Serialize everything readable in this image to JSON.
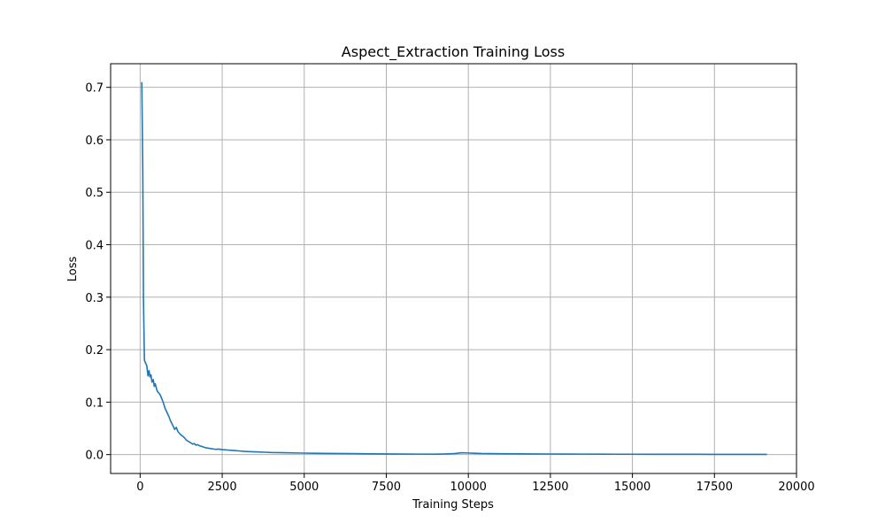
{
  "chart_data": {
    "type": "line",
    "title": "Aspect_Extraction Training Loss",
    "xlabel": "Training Steps",
    "ylabel": "Loss",
    "xlim": [
      -900,
      20000
    ],
    "ylim": [
      -0.036,
      0.745
    ],
    "xticks": [
      0,
      2500,
      5000,
      7500,
      10000,
      12500,
      15000,
      17500,
      20000
    ],
    "yticks": [
      0.0,
      0.1,
      0.2,
      0.3,
      0.4,
      0.5,
      0.6,
      0.7
    ],
    "xtick_labels": [
      "0",
      "2500",
      "5000",
      "7500",
      "10000",
      "12500",
      "15000",
      "17500",
      "20000"
    ],
    "ytick_labels": [
      "0.0",
      "0.1",
      "0.2",
      "0.3",
      "0.4",
      "0.5",
      "0.6",
      "0.7"
    ],
    "grid": true,
    "line_color": "#1f77b4",
    "series": [
      {
        "x": [
          50,
          80,
          100,
          130,
          160,
          200,
          240,
          270,
          300,
          330,
          360,
          400,
          430,
          460,
          500,
          530,
          560,
          600,
          650,
          700,
          760,
          820,
          880,
          920,
          960,
          1000,
          1050,
          1100,
          1150,
          1200,
          1250,
          1300,
          1350,
          1400,
          1450,
          1500,
          1550,
          1600,
          1650,
          1700,
          1750,
          1800,
          1850,
          1900,
          1950,
          2000,
          2100,
          2200,
          2300,
          2400,
          2500,
          2600,
          2700,
          2800,
          2900,
          3000,
          3200,
          3400,
          3600,
          3800,
          4000,
          4200,
          4400,
          4600,
          4800,
          5000,
          5300,
          5600,
          6000,
          6500,
          7000,
          7500,
          8000,
          8500,
          9000,
          9300,
          9600,
          9800,
          10000,
          10200,
          10400,
          10700,
          11000,
          11500,
          12000,
          12500,
          13000,
          13500,
          14000,
          14500,
          15000,
          15500,
          16000,
          16500,
          17000,
          17500,
          18000,
          18500,
          19000,
          19100
        ],
        "y": [
          0.71,
          0.54,
          0.3,
          0.18,
          0.175,
          0.17,
          0.15,
          0.16,
          0.148,
          0.152,
          0.138,
          0.143,
          0.13,
          0.135,
          0.125,
          0.12,
          0.118,
          0.115,
          0.108,
          0.1,
          0.088,
          0.08,
          0.072,
          0.065,
          0.06,
          0.055,
          0.048,
          0.052,
          0.044,
          0.04,
          0.037,
          0.035,
          0.032,
          0.028,
          0.026,
          0.024,
          0.022,
          0.02,
          0.021,
          0.018,
          0.019,
          0.017,
          0.016,
          0.015,
          0.014,
          0.013,
          0.012,
          0.011,
          0.01,
          0.0105,
          0.0095,
          0.009,
          0.0085,
          0.008,
          0.0075,
          0.007,
          0.006,
          0.0055,
          0.005,
          0.0045,
          0.004,
          0.0038,
          0.0035,
          0.0033,
          0.003,
          0.0028,
          0.0025,
          0.0022,
          0.002,
          0.0018,
          0.0015,
          0.0012,
          0.001,
          0.0009,
          0.0008,
          0.0012,
          0.002,
          0.0035,
          0.003,
          0.0025,
          0.002,
          0.0018,
          0.0016,
          0.0014,
          0.0012,
          0.0011,
          0.001,
          0.0009,
          0.0008,
          0.0007,
          0.0007,
          0.0006,
          0.0006,
          0.0005,
          0.0005,
          0.0004,
          0.0004,
          0.0004,
          0.0003,
          0.0003
        ]
      }
    ]
  }
}
